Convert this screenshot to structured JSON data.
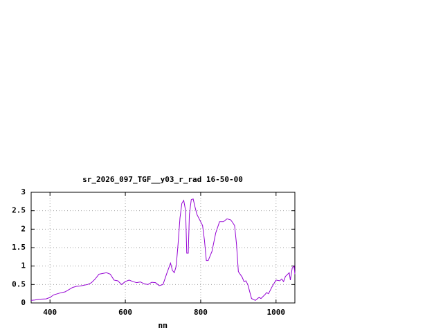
{
  "chart_data": {
    "type": "line",
    "title": "sr_2026_097_TGF__y03_r_rad 16-50-00",
    "x_label": "nm",
    "xlim": [
      350,
      1050
    ],
    "xticks": [
      400,
      600,
      800,
      1000
    ],
    "ylim": [
      0,
      3
    ],
    "yticks": [
      0,
      0.5,
      1,
      1.5,
      2,
      2.5,
      3
    ],
    "grid": true,
    "x": [
      350,
      360,
      370,
      390,
      400,
      410,
      420,
      430,
      440,
      450,
      460,
      470,
      480,
      490,
      500,
      510,
      520,
      530,
      540,
      550,
      560,
      570,
      580,
      590,
      600,
      610,
      620,
      630,
      640,
      650,
      660,
      670,
      680,
      690,
      700,
      710,
      720,
      725,
      730,
      735,
      740,
      745,
      750,
      755,
      760,
      763,
      767,
      770,
      775,
      780,
      785,
      790,
      800,
      805,
      810,
      815,
      820,
      830,
      840,
      850,
      860,
      870,
      880,
      890,
      895,
      900,
      910,
      915,
      920,
      925,
      935,
      945,
      955,
      960,
      970,
      975,
      980,
      990,
      1000,
      1010,
      1015,
      1020,
      1025,
      1035,
      1038,
      1043,
      1048,
      1050
    ],
    "series": [
      {
        "color": "#9400d3",
        "values": [
          0.07,
          0.08,
          0.1,
          0.11,
          0.15,
          0.22,
          0.25,
          0.28,
          0.3,
          0.36,
          0.42,
          0.45,
          0.46,
          0.48,
          0.5,
          0.55,
          0.65,
          0.78,
          0.8,
          0.82,
          0.78,
          0.62,
          0.6,
          0.5,
          0.58,
          0.62,
          0.58,
          0.55,
          0.57,
          0.52,
          0.5,
          0.56,
          0.55,
          0.47,
          0.5,
          0.8,
          1.08,
          0.88,
          0.82,
          1.0,
          1.6,
          2.3,
          2.7,
          2.78,
          2.5,
          1.35,
          1.35,
          2.4,
          2.8,
          2.82,
          2.6,
          2.4,
          2.2,
          2.1,
          1.7,
          1.15,
          1.15,
          1.4,
          1.9,
          2.2,
          2.2,
          2.28,
          2.25,
          2.1,
          1.6,
          0.85,
          0.7,
          0.58,
          0.6,
          0.5,
          0.12,
          0.07,
          0.15,
          0.12,
          0.22,
          0.28,
          0.25,
          0.45,
          0.62,
          0.6,
          0.65,
          0.58,
          0.72,
          0.82,
          0.62,
          0.95,
          1.0,
          0.78
        ]
      }
    ]
  }
}
